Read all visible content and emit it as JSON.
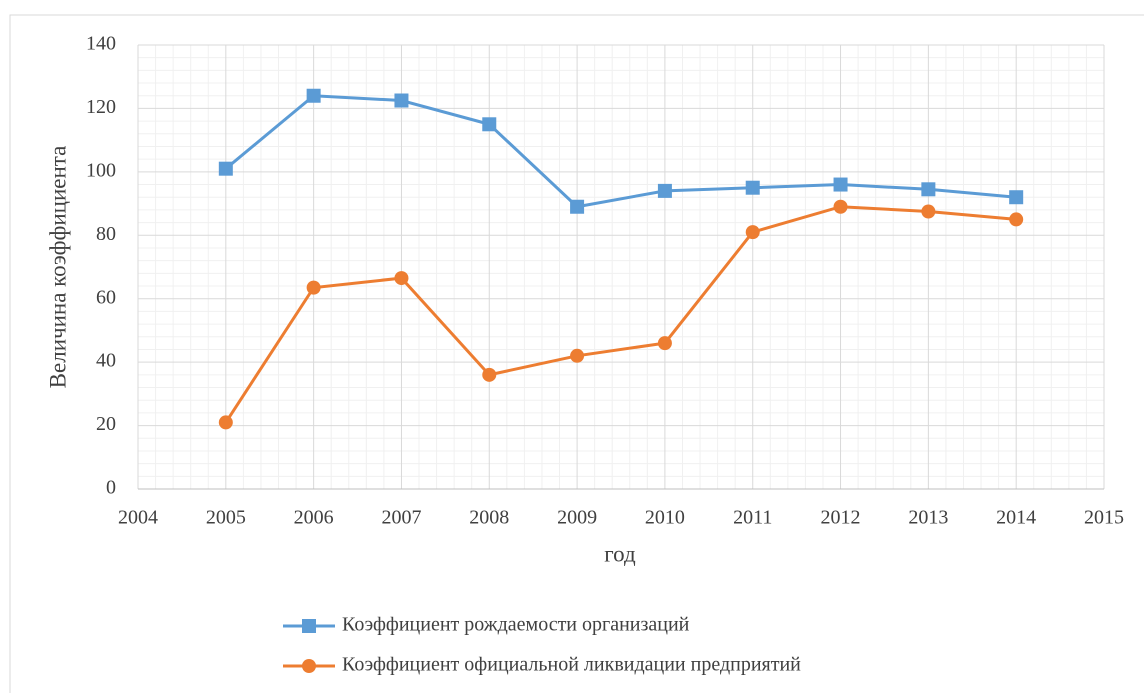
{
  "chart_data": {
    "type": "line",
    "x_label": "год",
    "y_label": "Величина коэффициента",
    "series": [
      {
        "name": "Коэффициент рождаемости организаций",
        "color": "#5b9bd5",
        "marker": "square",
        "x": [
          2005,
          2006,
          2007,
          2008,
          2009,
          2010,
          2011,
          2012,
          2013,
          2014
        ],
        "values": [
          101,
          124,
          122.5,
          115,
          89,
          94,
          95,
          96,
          94.5,
          92
        ]
      },
      {
        "name": "Коэффициент официальной ликвидации предприятий",
        "color": "#ed7d31",
        "marker": "circle",
        "x": [
          2005,
          2006,
          2007,
          2008,
          2009,
          2010,
          2011,
          2012,
          2013,
          2014
        ],
        "values": [
          21,
          63.5,
          66.5,
          36,
          42,
          46,
          81,
          89,
          87.5,
          85
        ]
      }
    ],
    "xlim": [
      2004,
      2015
    ],
    "xticks": [
      2004,
      2005,
      2006,
      2007,
      2008,
      2009,
      2010,
      2011,
      2012,
      2013,
      2014,
      2015
    ],
    "ylim": [
      0,
      140
    ],
    "yticks": [
      0,
      20,
      40,
      60,
      80,
      100,
      120,
      140
    ],
    "grid": true,
    "minor_grid": true,
    "legend": "bottom"
  }
}
